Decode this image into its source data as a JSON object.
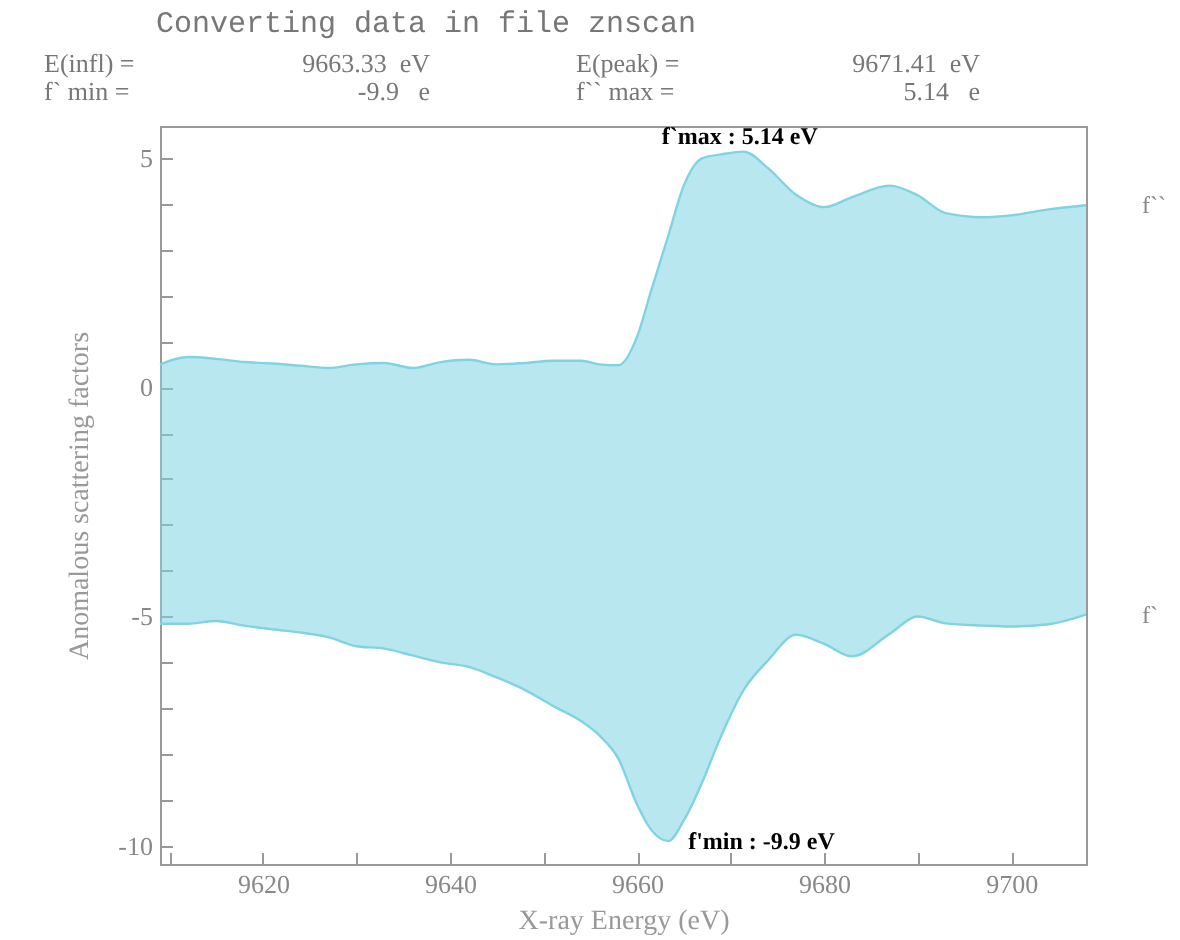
{
  "chart_data": {
    "type": "line",
    "title": "Converting data in file znscan",
    "xlabel": "X-ray Energy (eV)",
    "ylabel": "Anomalous scattering factors",
    "annotations": [
      "E(infl) =",
      "9663.33  eV",
      "E(peak) =",
      "9671.41  eV",
      "f` min =",
      "-9.9   e",
      "f`` max =",
      "5.14   e",
      {
        "text": "f`max : 5.14 eV",
        "x": 9671.41,
        "y": 5.14
      },
      {
        "text": "f'min : -9.9 eV",
        "x": 9663.33,
        "y": -9.9
      }
    ],
    "x": [
      9609,
      9612,
      9615,
      9618,
      9621,
      9624,
      9627,
      9630,
      9633,
      9636,
      9639,
      9642,
      9645,
      9648,
      9651,
      9654,
      9656,
      9658,
      9660,
      9661.5,
      9663.33,
      9665,
      9667,
      9669,
      9671.41,
      9674,
      9677,
      9680,
      9683,
      9687,
      9690,
      9693,
      9697,
      9700,
      9704,
      9708
    ],
    "series": [
      {
        "name": "f``",
        "color": "#7fd3e3",
        "values": [
          0.5,
          0.66,
          0.62,
          0.55,
          0.52,
          0.47,
          0.42,
          0.5,
          0.53,
          0.42,
          0.55,
          0.6,
          0.5,
          0.53,
          0.58,
          0.58,
          0.5,
          0.48,
          1.1,
          2.1,
          3.3,
          4.4,
          5.0,
          5.08,
          5.14,
          4.78,
          4.2,
          3.93,
          4.15,
          4.4,
          4.19,
          3.8,
          3.71,
          3.75,
          3.88,
          3.97
        ],
        "upper": [
          0.5,
          0.66,
          0.62,
          0.55,
          0.52,
          0.47,
          0.42,
          0.5,
          0.53,
          0.42,
          0.55,
          0.6,
          0.5,
          0.53,
          0.58,
          0.58,
          0.5,
          0.48,
          1.1,
          2.1,
          3.3,
          4.4,
          5.0,
          5.08,
          5.14,
          4.78,
          4.2,
          3.93,
          4.15,
          4.4,
          4.19,
          3.8,
          3.71,
          3.75,
          3.88,
          3.97
        ],
        "lower": [
          -5.16,
          -5.16,
          -5.1,
          -5.2,
          -5.28,
          -5.35,
          -5.45,
          -5.65,
          -5.7,
          -5.85,
          -6.0,
          -6.1,
          -6.33,
          -6.6,
          -6.95,
          -7.28,
          -7.6,
          -8.1,
          -9.1,
          -9.65,
          -9.9,
          -9.45,
          -8.6,
          -7.6,
          -6.6,
          -5.96,
          -5.4,
          -5.6,
          -5.87,
          -5.38,
          -5.0,
          -5.15,
          -5.2,
          -5.22,
          -5.17,
          -4.96
        ]
      },
      {
        "name": "f`",
        "color": "#7fd3e3",
        "values": [
          -5.16,
          -5.16,
          -5.1,
          -5.2,
          -5.28,
          -5.35,
          -5.45,
          -5.65,
          -5.7,
          -5.85,
          -6.0,
          -6.1,
          -6.33,
          -6.6,
          -6.95,
          -7.28,
          -7.6,
          -8.1,
          -9.1,
          -9.65,
          -9.9,
          -9.45,
          -8.6,
          -7.6,
          -6.6,
          -5.96,
          -5.4,
          -5.6,
          -5.87,
          -5.38,
          -5.0,
          -5.15,
          -5.2,
          -5.22,
          -5.17,
          -4.96
        ]
      }
    ],
    "xlim": [
      9609,
      9708
    ],
    "xticks": [
      {
        "value": 9610,
        "label": null
      },
      9620,
      {
        "value": 9630,
        "label": null
      },
      9640,
      {
        "value": 9650,
        "label": null
      },
      9660,
      {
        "value": 9670,
        "label": null
      },
      9680,
      {
        "value": 9690,
        "label": null
      },
      9700
    ],
    "ylim": [
      -10.4,
      5.7
    ],
    "yticks": [
      -10,
      {
        "value": -9,
        "label": null
      },
      {
        "value": -8,
        "label": null
      },
      {
        "value": -7,
        "label": null
      },
      {
        "value": -6,
        "label": null
      },
      -5,
      {
        "value": -4,
        "label": null
      },
      {
        "value": -3,
        "label": null
      },
      {
        "value": -2,
        "label": null
      },
      {
        "value": -1,
        "label": null
      },
      0,
      {
        "value": 1,
        "label": null
      },
      {
        "value": 2,
        "label": null
      },
      {
        "value": 3,
        "label": null
      },
      {
        "value": 4,
        "label": null
      },
      5
    ]
  }
}
